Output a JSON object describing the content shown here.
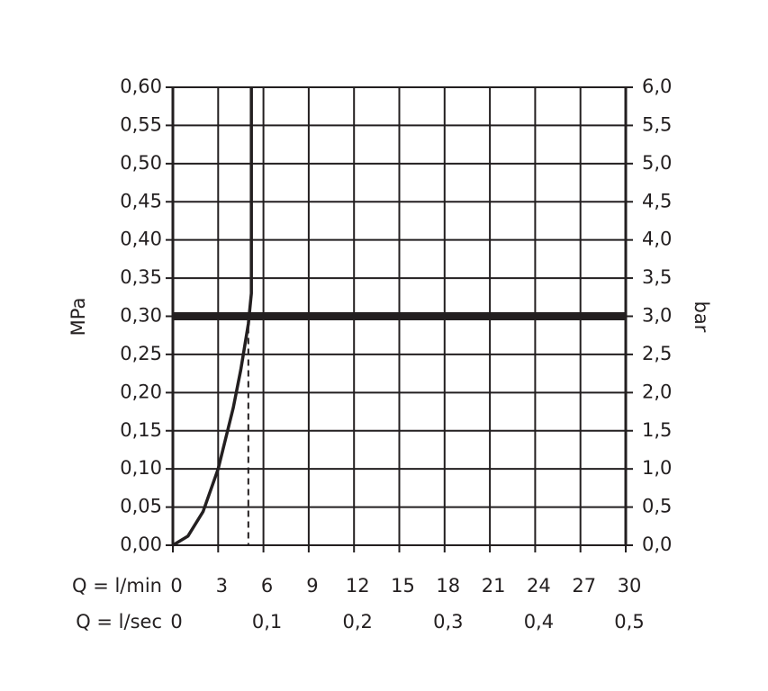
{
  "chart_data": {
    "type": "line",
    "x_label": "Q = l/min",
    "x2_label": "Q = l/sec",
    "y_label": "MPa",
    "y2_label": "bar",
    "grid": true,
    "xlim": [
      0,
      30
    ],
    "xticks": [
      0,
      3,
      6,
      9,
      12,
      15,
      18,
      21,
      24,
      27,
      30
    ],
    "x2lim": [
      0,
      0.5
    ],
    "x2ticks": [
      0,
      {
        "value": 0.1,
        "label": "0,1"
      },
      {
        "value": 0.2,
        "label": "0,2"
      },
      {
        "value": 0.3,
        "label": "0,3"
      },
      {
        "value": 0.4,
        "label": "0,4"
      },
      {
        "value": 0.5,
        "label": "0,5"
      }
    ],
    "ylim": [
      0,
      0.6
    ],
    "yticks": [
      {
        "value": 0,
        "label": "0,00"
      },
      {
        "value": 0.05,
        "label": "0,05"
      },
      {
        "value": 0.1,
        "label": "0,10"
      },
      {
        "value": 0.15,
        "label": "0,15"
      },
      {
        "value": 0.2,
        "label": "0,20"
      },
      {
        "value": 0.25,
        "label": "0,25"
      },
      {
        "value": 0.3,
        "label": "0,30"
      },
      {
        "value": 0.35,
        "label": "0,35"
      },
      {
        "value": 0.4,
        "label": "0,40"
      },
      {
        "value": 0.45,
        "label": "0,45"
      },
      {
        "value": 0.5,
        "label": "0,50"
      },
      {
        "value": 0.55,
        "label": "0,55"
      },
      {
        "value": 0.6,
        "label": "0,60"
      }
    ],
    "y2lim": [
      0,
      6
    ],
    "y2ticks": [
      {
        "value": 0,
        "label": "0,0"
      },
      {
        "value": 0.5,
        "label": "0,5"
      },
      {
        "value": 1,
        "label": "1,0"
      },
      {
        "value": 1.5,
        "label": "1,5"
      },
      {
        "value": 2,
        "label": "2,0"
      },
      {
        "value": 2.5,
        "label": "2,5"
      },
      {
        "value": 3,
        "label": "3,0"
      },
      {
        "value": 3.5,
        "label": "3,5"
      },
      {
        "value": 4,
        "label": "4,0"
      },
      {
        "value": 4.5,
        "label": "4,5"
      },
      {
        "value": 5,
        "label": "5,0"
      },
      {
        "value": 5.5,
        "label": "5,5"
      },
      {
        "value": 6,
        "label": "6,0"
      }
    ],
    "reference_y": 0.3,
    "reference_x": 5,
    "series": [
      {
        "color": "#231f20",
        "x": [
          0,
          1,
          2,
          3,
          4,
          4.5,
          5,
          5.2,
          5.2
        ],
        "values": [
          0,
          0.012,
          0.044,
          0.1,
          0.18,
          0.23,
          0.29,
          0.33,
          0.6
        ]
      }
    ]
  }
}
